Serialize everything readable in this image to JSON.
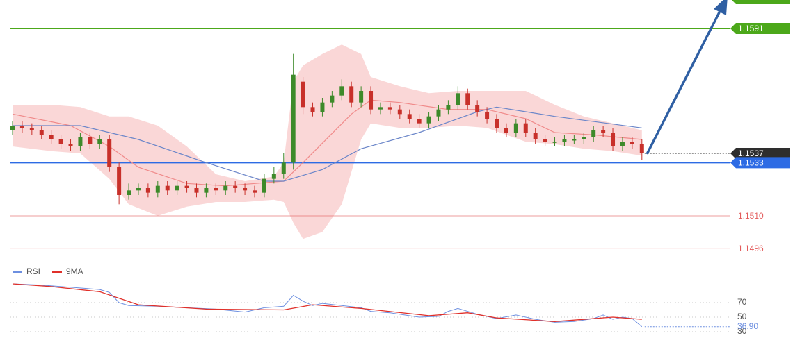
{
  "chart_data": [
    {
      "type": "candlestick",
      "ylim": [
        1.14893,
        1.16033
      ],
      "bull_color": "#3d8a2a",
      "bear_color": "#c8302a",
      "open": [
        1.1547,
        1.1549,
        1.1548,
        1.1547,
        1.1545,
        1.1543,
        1.1541,
        1.154,
        1.1544,
        1.1541,
        1.1543,
        1.1531,
        1.1519,
        1.1521,
        1.1522,
        1.152,
        1.1523,
        1.1521,
        1.1523,
        1.1522,
        1.152,
        1.1522,
        1.1521,
        1.1523,
        1.1522,
        1.1521,
        1.152,
        1.1526,
        1.1528,
        1.1533,
        1.1568,
        1.1557,
        1.1555,
        1.1559,
        1.1562,
        1.1566,
        1.1559,
        1.1564,
        1.1556,
        1.1557,
        1.1556,
        1.1554,
        1.1552,
        1.155,
        1.1553,
        1.1556,
        1.1558,
        1.1563,
        1.1558,
        1.1555,
        1.1552,
        1.1548,
        1.1546,
        1.155,
        1.1546,
        1.1543,
        1.1542,
        1.1542,
        1.1543,
        1.1543,
        1.1544,
        1.1547,
        1.1546,
        1.154,
        1.1542,
        1.1541
      ],
      "high": [
        1.1551,
        1.1551,
        1.155,
        1.1549,
        1.1547,
        1.1545,
        1.1543,
        1.1546,
        1.1546,
        1.1545,
        1.1545,
        1.1533,
        1.1524,
        1.1524,
        1.1524,
        1.1525,
        1.1525,
        1.1525,
        1.1525,
        1.1524,
        1.1524,
        1.1524,
        1.1525,
        1.1525,
        1.1524,
        1.1523,
        1.1528,
        1.1531,
        1.1537,
        1.158,
        1.157,
        1.1559,
        1.1561,
        1.1564,
        1.1569,
        1.1568,
        1.1566,
        1.1566,
        1.1559,
        1.1559,
        1.1558,
        1.1556,
        1.1554,
        1.1555,
        1.1558,
        1.156,
        1.1566,
        1.1565,
        1.156,
        1.1557,
        1.1554,
        1.155,
        1.1552,
        1.1552,
        1.1548,
        1.1545,
        1.1544,
        1.1545,
        1.1545,
        1.1546,
        1.1549,
        1.1549,
        1.1548,
        1.1544,
        1.1544,
        1.1543
      ],
      "low": [
        1.1545,
        1.1546,
        1.1545,
        1.1543,
        1.1541,
        1.1539,
        1.1538,
        1.1538,
        1.1539,
        1.1539,
        1.1529,
        1.1515,
        1.1517,
        1.1519,
        1.1518,
        1.1518,
        1.1519,
        1.1519,
        1.152,
        1.1518,
        1.1518,
        1.1519,
        1.1519,
        1.152,
        1.1519,
        1.1518,
        1.1518,
        1.1524,
        1.1526,
        1.153,
        1.1554,
        1.1553,
        1.1553,
        1.1557,
        1.156,
        1.1557,
        1.1557,
        1.1554,
        1.1554,
        1.1554,
        1.1552,
        1.155,
        1.1548,
        1.1548,
        1.1551,
        1.1554,
        1.1556,
        1.1556,
        1.1553,
        1.155,
        1.1546,
        1.1544,
        1.1544,
        1.1544,
        1.1541,
        1.154,
        1.154,
        1.154,
        1.1541,
        1.1541,
        1.1542,
        1.1544,
        1.1538,
        1.1538,
        1.1539,
        1.1534
      ],
      "close": [
        1.1549,
        1.1548,
        1.1547,
        1.1545,
        1.1543,
        1.1541,
        1.154,
        1.1544,
        1.1541,
        1.1543,
        1.1531,
        1.1519,
        1.1521,
        1.1522,
        1.152,
        1.1523,
        1.1521,
        1.1523,
        1.1522,
        1.152,
        1.1522,
        1.1521,
        1.1523,
        1.1522,
        1.1521,
        1.152,
        1.1526,
        1.1528,
        1.1533,
        1.1571,
        1.1557,
        1.1555,
        1.1559,
        1.1562,
        1.1566,
        1.1559,
        1.1564,
        1.1556,
        1.1557,
        1.1556,
        1.1554,
        1.1552,
        1.155,
        1.1553,
        1.1556,
        1.1558,
        1.1563,
        1.1558,
        1.1555,
        1.1552,
        1.1548,
        1.1546,
        1.155,
        1.1546,
        1.1543,
        1.1542,
        1.1542,
        1.1543,
        1.1543,
        1.1544,
        1.1547,
        1.1546,
        1.154,
        1.1542,
        1.1541,
        1.1537
      ],
      "bands": {
        "color": "#f8caca",
        "x": [
          0,
          4,
          7,
          10,
          12,
          15,
          18,
          21,
          24,
          27,
          28,
          29,
          30,
          32,
          34,
          36,
          37,
          40,
          43,
          46,
          49,
          53,
          56,
          59,
          62,
          65
        ],
        "upper": [
          1.1558,
          1.1558,
          1.1557,
          1.1553,
          1.1553,
          1.1549,
          1.154,
          1.1528,
          1.1525,
          1.1527,
          1.1533,
          1.1568,
          1.1575,
          1.158,
          1.1584,
          1.158,
          1.157,
          1.1566,
          1.1563,
          1.1564,
          1.1564,
          1.1564,
          1.1558,
          1.1553,
          1.155,
          1.1547
        ],
        "lower": [
          1.154,
          1.1538,
          1.1537,
          1.1526,
          1.1515,
          1.151,
          1.1514,
          1.1516,
          1.1516,
          1.1517,
          1.1516,
          1.1507,
          1.15,
          1.1503,
          1.1515,
          1.1543,
          1.155,
          1.1548,
          1.1548,
          1.1549,
          1.1548,
          1.1542,
          1.1541,
          1.1539,
          1.1538,
          1.1536
        ]
      },
      "lines": [
        {
          "color": "#f08a8a",
          "x": [
            0,
            6,
            10,
            13,
            18,
            22,
            28,
            30,
            35,
            37,
            40,
            45,
            49,
            53,
            56,
            60,
            65
          ],
          "values": [
            1.1554,
            1.1549,
            1.154,
            1.1531,
            1.1524,
            1.1523,
            1.1525,
            1.1533,
            1.1554,
            1.156,
            1.1559,
            1.1556,
            1.1556,
            1.1552,
            1.1546,
            1.1545,
            1.1543
          ]
        },
        {
          "color": "#6b86c9",
          "x": [
            0,
            7,
            13,
            20,
            26,
            28,
            32,
            36,
            42,
            48,
            50,
            56,
            65
          ],
          "values": [
            1.1549,
            1.1549,
            1.1543,
            1.1533,
            1.1525,
            1.1525,
            1.153,
            1.1539,
            1.1546,
            1.1555,
            1.1557,
            1.1553,
            1.1548
          ]
        }
      ],
      "levels": [
        {
          "price": 1.1591,
          "color": "#4ca81a",
          "style": "solid",
          "box": true
        },
        {
          "price": 1.1537,
          "color": "#2e2e2e",
          "style": "dotted",
          "box": true
        },
        {
          "price": 1.1533,
          "color": "#2d6be4",
          "style": "solid",
          "box": true
        },
        {
          "price": {
            "value": 1.151,
            "label": "1.1510"
          },
          "color": "#e35b5b",
          "style": "thin",
          "box": false
        },
        {
          "price": 1.1496,
          "color": "#e35b5b",
          "style": "thin",
          "box": false
        }
      ]
    },
    {
      "type": "line",
      "ylim": [
        20,
        100
      ],
      "yticks": [
        70,
        50,
        30
      ],
      "grid": true,
      "series": [
        {
          "name": "RSI",
          "color": "#6d8fe0",
          "x": [
            0,
            3,
            6,
            9,
            10,
            11,
            12,
            15,
            18,
            21,
            24,
            26,
            28,
            29,
            30,
            31,
            32,
            34,
            36,
            37,
            39,
            42,
            44,
            45,
            46,
            48,
            50,
            52,
            54,
            56,
            58,
            60,
            61,
            62,
            63,
            64,
            65
          ],
          "values": [
            95.7,
            94,
            91,
            88,
            84,
            70,
            66,
            65,
            63,
            61,
            57,
            63,
            65,
            80,
            72,
            66,
            69,
            66,
            63,
            58,
            56,
            50,
            51,
            58,
            62,
            54,
            48,
            53,
            47,
            43,
            44,
            48,
            53,
            47,
            50,
            48,
            36.9
          ],
          "value_labels": [
            null,
            null,
            null,
            null,
            null,
            null,
            null,
            null,
            null,
            null,
            null,
            null,
            null,
            null,
            null,
            null,
            null,
            null,
            null,
            null,
            null,
            null,
            null,
            null,
            null,
            null,
            null,
            null,
            null,
            null,
            null,
            null,
            null,
            null,
            null,
            null,
            "36.90"
          ]
        },
        {
          "name": "9MA",
          "color": "#e0302a",
          "x": [
            0,
            4,
            9,
            13,
            20,
            28,
            31,
            36,
            43,
            47,
            50,
            56,
            62,
            65
          ],
          "values": [
            95.7,
            92,
            85,
            67,
            61,
            60,
            67,
            62,
            52,
            56,
            49,
            44,
            50,
            47
          ]
        }
      ]
    }
  ]
}
